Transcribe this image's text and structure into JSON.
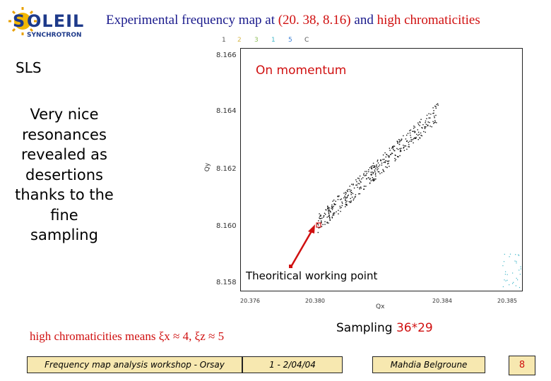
{
  "header": {
    "title_prefix": "Experimental frequency map at ",
    "title_coords": "(20. 38, 8.16)",
    "title_mid": " and ",
    "title_highlight": "high chromaticities",
    "logo_text": "SOLEIL",
    "logo_sub": "SYNCHROTRON"
  },
  "left": {
    "sls": "SLS",
    "description": "Very nice resonances revealed as desertions thanks to the fine sampling"
  },
  "plot": {
    "annotation_top": "On momentum",
    "annotation_point": "Theoritical working point",
    "color_numbers": [
      {
        "text": "1",
        "color": "#555555"
      },
      {
        "text": "2",
        "color": "#d6b84a"
      },
      {
        "text": "3",
        "color": "#8fbf5a"
      },
      {
        "text": "1",
        "color": "#3fb6c9"
      },
      {
        "text": "5",
        "color": "#3a7fd6"
      },
      {
        "text": "C",
        "color": "#555555"
      }
    ],
    "y_axis_label": "Qy",
    "x_axis_label": "Qx",
    "y_ticks": [
      "8.166",
      "8.164",
      "8.162",
      "8.160",
      "8.158"
    ],
    "x_ticks": [
      "20.376",
      "20.380",
      "20.384",
      "20.385"
    ]
  },
  "bottom": {
    "high_chrom": "high chromaticities means ξx ≈ 4, ξz ≈ 5",
    "sampling_label": "Sampling ",
    "sampling_value": "36*29"
  },
  "footer": {
    "workshop": "Frequency map analysis workshop - Orsay",
    "date": "1 - 2/04/04",
    "author": "Mahdia Belgroune",
    "page": "8"
  },
  "colors": {
    "accent": "#d01010",
    "title": "#1a1a8c",
    "footer_bg": "#f7e8b0"
  }
}
